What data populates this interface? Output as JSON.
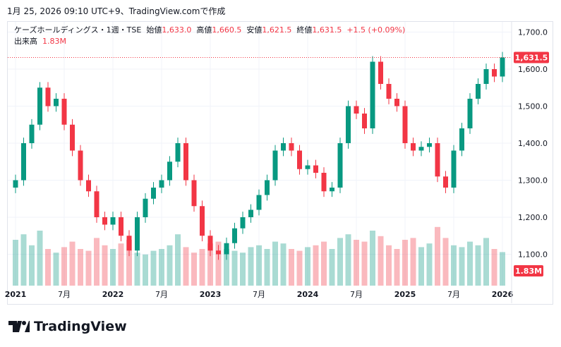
{
  "caption": "1月 25, 2026 09:10 UTC+9、TradingView.comで作成",
  "legend": {
    "symbol": "ケーズホールディングス・1週・TSE",
    "open_label": "始値",
    "open": "1,633.0",
    "high_label": "高値",
    "high": "1,660.5",
    "low_label": "安値",
    "low": "1,621.5",
    "close_label": "終値",
    "close": "1,631.5",
    "change": "+1.5 (+0.09%)",
    "volume_label": "出来高",
    "volume": "1.83M"
  },
  "last_price_badge": "1,631.5",
  "volume_badge": "1.83M",
  "logo": "TradingView",
  "colors": {
    "up": "#089981",
    "down": "#f23645"
  },
  "chart_data": {
    "type": "candlestick",
    "title": "ケーズホールディングス・1週・TSE",
    "y_ticks": [
      "1,700.0",
      "1,600.0",
      "1,500.0",
      "1,400.0",
      "1,300.0",
      "1,200.0",
      "1,100.0"
    ],
    "y_tick_values": [
      1700,
      1600,
      1500,
      1400,
      1300,
      1200,
      1100
    ],
    "ylim": [
      1060,
      1750
    ],
    "x_ticks": [
      "2021",
      "7月",
      "2022",
      "7月",
      "2023",
      "7月",
      "2024",
      "7月",
      "2025",
      "7月",
      "2026"
    ],
    "x_tick_index": [
      0,
      6,
      12,
      18,
      24,
      30,
      36,
      42,
      48,
      54,
      60
    ],
    "closes": [
      1300,
      1400,
      1450,
      1550,
      1500,
      1520,
      1450,
      1380,
      1300,
      1270,
      1200,
      1180,
      1200,
      1150,
      1110,
      1200,
      1250,
      1280,
      1300,
      1350,
      1400,
      1300,
      1230,
      1150,
      1110,
      1100,
      1130,
      1170,
      1200,
      1220,
      1260,
      1300,
      1380,
      1400,
      1380,
      1330,
      1340,
      1320,
      1270,
      1280,
      1400,
      1500,
      1480,
      1440,
      1620,
      1560,
      1520,
      1500,
      1400,
      1380,
      1390,
      1400,
      1310,
      1280,
      1380,
      1440,
      1520,
      1560,
      1600,
      1580,
      1631.5
    ],
    "volumes_m": [
      2.5,
      2.8,
      2.2,
      3.0,
      2.0,
      1.8,
      2.1,
      2.4,
      2.0,
      1.9,
      2.6,
      2.2,
      2.0,
      2.3,
      2.5,
      1.8,
      1.7,
      1.9,
      2.0,
      2.2,
      2.8,
      2.1,
      1.8,
      2.0,
      2.3,
      2.4,
      2.0,
      1.9,
      1.8,
      2.1,
      2.2,
      2.0,
      2.4,
      2.3,
      2.0,
      1.9,
      2.1,
      2.2,
      2.4,
      2.0,
      2.6,
      2.8,
      2.5,
      2.4,
      3.0,
      2.7,
      2.2,
      2.0,
      2.5,
      2.6,
      2.1,
      2.3,
      3.2,
      2.6,
      2.2,
      2.1,
      2.4,
      2.2,
      2.6,
      2.0,
      1.83
    ]
  }
}
